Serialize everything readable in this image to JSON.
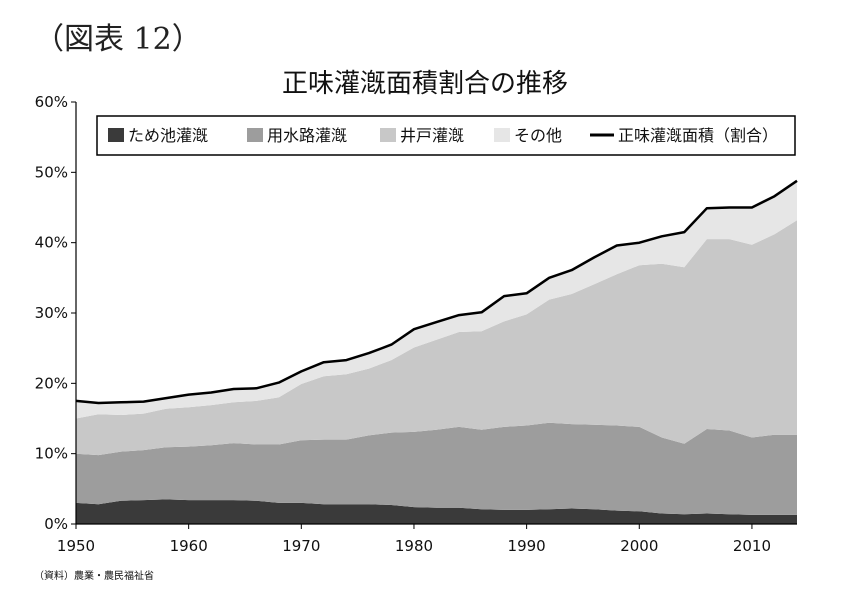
{
  "figure_label": "（図表 12）",
  "source_note": "（資料）農業・農民福祉省",
  "colors": {
    "tank": "#3a3a3a",
    "canal": "#9d9d9d",
    "well": "#c8c8c8",
    "other": "#e6e6e6",
    "net": "#000000"
  },
  "chart_data": {
    "type": "area",
    "stacked": true,
    "title": "正味灌漑面積割合の推移",
    "xlabel": "",
    "ylabel": "",
    "xlim": [
      1950,
      2014
    ],
    "ylim": [
      0,
      0.6
    ],
    "x_ticks": [
      1950,
      1960,
      1970,
      1980,
      1990,
      2000,
      2010
    ],
    "y_ticks": [
      {
        "value": 0,
        "label": "0%"
      },
      {
        "value": 0.1,
        "label": "10%"
      },
      {
        "value": 0.2,
        "label": "20%"
      },
      {
        "value": 0.3,
        "label": "30%"
      },
      {
        "value": 0.4,
        "label": "40%"
      },
      {
        "value": 0.5,
        "label": "50%"
      },
      {
        "value": 0.6,
        "label": "60%"
      }
    ],
    "legend_position": "top",
    "x": [
      1950,
      1952,
      1954,
      1956,
      1958,
      1960,
      1962,
      1964,
      1966,
      1968,
      1970,
      1972,
      1974,
      1976,
      1978,
      1980,
      1982,
      1984,
      1986,
      1988,
      1990,
      1992,
      1994,
      1996,
      1998,
      2000,
      2002,
      2004,
      2006,
      2008,
      2010,
      2012,
      2014
    ],
    "series": [
      {
        "name": "ため池灌漑",
        "key": "tank",
        "kind": "area",
        "values": [
          0.03,
          0.028,
          0.033,
          0.034,
          0.035,
          0.034,
          0.034,
          0.034,
          0.033,
          0.03,
          0.03,
          0.028,
          0.028,
          0.028,
          0.027,
          0.024,
          0.023,
          0.023,
          0.021,
          0.02,
          0.02,
          0.021,
          0.022,
          0.021,
          0.019,
          0.018,
          0.015,
          0.014,
          0.015,
          0.014,
          0.013,
          0.013,
          0.013
        ]
      },
      {
        "name": "用水路灌漑",
        "key": "canal",
        "kind": "area",
        "values": [
          0.07,
          0.07,
          0.07,
          0.071,
          0.074,
          0.076,
          0.078,
          0.081,
          0.08,
          0.083,
          0.089,
          0.092,
          0.092,
          0.098,
          0.103,
          0.107,
          0.111,
          0.115,
          0.113,
          0.118,
          0.12,
          0.123,
          0.12,
          0.12,
          0.121,
          0.12,
          0.108,
          0.1,
          0.12,
          0.119,
          0.11,
          0.114,
          0.114
        ]
      },
      {
        "name": "井戸灌漑",
        "key": "well",
        "kind": "area",
        "values": [
          0.05,
          0.058,
          0.052,
          0.052,
          0.055,
          0.056,
          0.057,
          0.058,
          0.062,
          0.067,
          0.08,
          0.09,
          0.093,
          0.095,
          0.103,
          0.12,
          0.128,
          0.135,
          0.14,
          0.15,
          0.158,
          0.175,
          0.185,
          0.2,
          0.215,
          0.23,
          0.247,
          0.251,
          0.27,
          0.272,
          0.274,
          0.285,
          0.305
        ]
      },
      {
        "name": "その他",
        "key": "other",
        "kind": "area",
        "values": [
          0.025,
          0.016,
          0.018,
          0.017,
          0.015,
          0.018,
          0.018,
          0.019,
          0.018,
          0.021,
          0.018,
          0.02,
          0.02,
          0.022,
          0.022,
          0.026,
          0.025,
          0.024,
          0.027,
          0.036,
          0.03,
          0.031,
          0.034,
          0.038,
          0.041,
          0.032,
          0.039,
          0.05,
          0.044,
          0.045,
          0.053,
          0.054,
          0.056
        ]
      },
      {
        "name": "正味灌漑面積（割合）",
        "key": "net",
        "kind": "line",
        "values": [
          0.175,
          0.172,
          0.173,
          0.174,
          0.179,
          0.184,
          0.187,
          0.192,
          0.193,
          0.201,
          0.217,
          0.23,
          0.233,
          0.243,
          0.255,
          0.277,
          0.287,
          0.297,
          0.301,
          0.324,
          0.328,
          0.35,
          0.361,
          0.379,
          0.396,
          0.4,
          0.409,
          0.415,
          0.449,
          0.45,
          0.45,
          0.466,
          0.488
        ]
      }
    ]
  }
}
